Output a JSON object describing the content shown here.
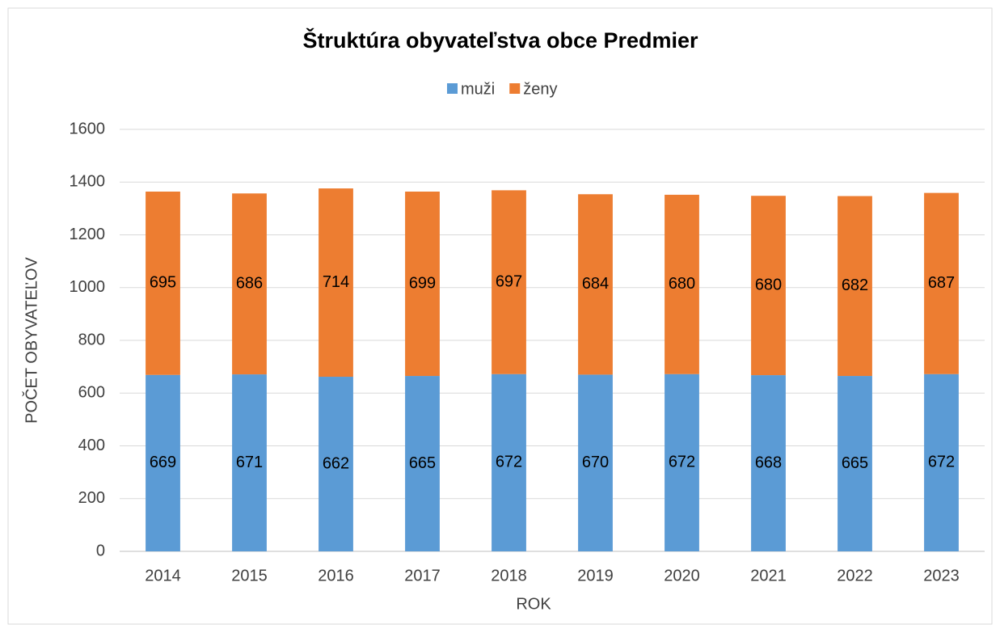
{
  "chart_data": {
    "type": "stacked_bar",
    "title": "Štruktúra obyvateľstva obce Predmier",
    "x_label": "ROK",
    "y_label": "POČET OBYVATEĽOV",
    "categories": [
      "2014",
      "2015",
      "2016",
      "2017",
      "2018",
      "2019",
      "2020",
      "2021",
      "2022",
      "2023"
    ],
    "series": [
      {
        "name": "muži",
        "color": "#5b9bd5",
        "values": [
          669,
          671,
          662,
          665,
          672,
          670,
          672,
          668,
          665,
          672
        ]
      },
      {
        "name": "ženy",
        "color": "#ed7d31",
        "values": [
          695,
          686,
          714,
          699,
          697,
          684,
          680,
          680,
          682,
          687
        ]
      }
    ],
    "ylim": [
      0,
      1600
    ],
    "yticks": [
      0,
      200,
      400,
      600,
      800,
      1000,
      1200,
      1400,
      1600
    ],
    "grid": true,
    "legend": "top"
  }
}
